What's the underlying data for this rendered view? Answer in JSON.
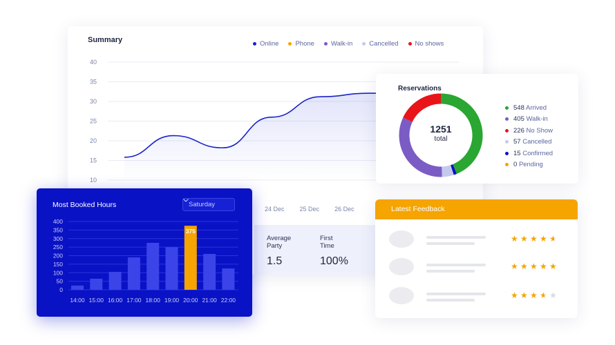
{
  "summary": {
    "title": "Summary",
    "legend": [
      {
        "label": "Online",
        "color": "#1a22c8"
      },
      {
        "label": "Phone",
        "color": "#f5a400"
      },
      {
        "label": "Walk-in",
        "color": "#7b5cc4"
      },
      {
        "label": "Cancelled",
        "color": "#c4c9ee"
      },
      {
        "label": "No shows",
        "color": "#e8141a"
      }
    ],
    "y_ticks": [
      "40",
      "35",
      "30",
      "25",
      "20",
      "15",
      "10"
    ],
    "x_dates": [
      "24 Dec",
      "25 Dec",
      "26 Dec"
    ],
    "stats": [
      {
        "label": "Average Party",
        "value": "1.5"
      },
      {
        "label": "First Time",
        "value": "100%"
      }
    ]
  },
  "reservations": {
    "title": "Reservations",
    "total": "1251",
    "total_label": "total",
    "items": [
      {
        "count": "548",
        "label": "Arrived",
        "color": "#2aa632",
        "value": 548
      },
      {
        "count": "405",
        "label": "Walk-in",
        "color": "#7b5cc4",
        "value": 405
      },
      {
        "count": "226",
        "label": "No Show",
        "color": "#e8141a",
        "value": 226
      },
      {
        "count": "57",
        "label": "Cancelled",
        "color": "#c4c9ee",
        "value": 57
      },
      {
        "count": "15",
        "label": "Confirmed",
        "color": "#0a12c6",
        "value": 15
      },
      {
        "count": "0",
        "label": "Pending",
        "color": "#f5a400",
        "value": 0
      }
    ]
  },
  "booked": {
    "title": "Most Booked Hours",
    "day": "Saturday",
    "highlight_label": "375",
    "y_ticks": [
      "400",
      "350",
      "300",
      "250",
      "200",
      "150",
      "100",
      "50",
      "0"
    ],
    "x_labels": [
      "14:00",
      "15:00",
      "16:00",
      "17:00",
      "18:00",
      "19:00",
      "20:00",
      "21:00",
      "22:00"
    ]
  },
  "feedback": {
    "title": "Latest Feedback",
    "ratings": [
      4.5,
      5,
      3.5
    ]
  },
  "chart_data": [
    {
      "type": "line",
      "title": "Summary",
      "x": [
        0,
        1,
        2,
        3,
        4,
        5,
        6
      ],
      "series": [
        {
          "name": "Online",
          "values": [
            15.8,
            21.3,
            18.2,
            26,
            31.2,
            32.1,
            32
          ]
        }
      ],
      "ylim": [
        10,
        40
      ],
      "grid": true,
      "legend": "top-right"
    },
    {
      "type": "bar",
      "title": "Most Booked Hours",
      "categories": [
        "14:00",
        "15:00",
        "16:00",
        "17:00",
        "18:00",
        "19:00",
        "20:00",
        "21:00",
        "22:00"
      ],
      "values": [
        25,
        65,
        105,
        190,
        275,
        250,
        375,
        210,
        125
      ],
      "ylim": [
        0,
        400
      ],
      "highlight": "20:00"
    },
    {
      "type": "pie",
      "title": "Reservations",
      "categories": [
        "Arrived",
        "Walk-in",
        "No Show",
        "Cancelled",
        "Confirmed",
        "Pending"
      ],
      "values": [
        548,
        405,
        226,
        57,
        15,
        0
      ]
    }
  ]
}
